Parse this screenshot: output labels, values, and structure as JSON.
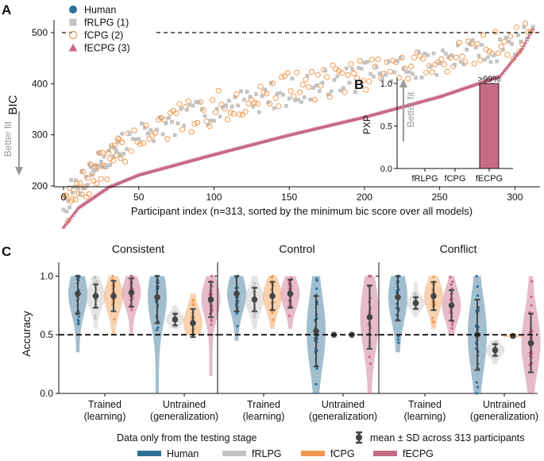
{
  "colors": {
    "human": "#2e6f95",
    "frlpg": "#c3c3c3",
    "fcpg": "#ef9a4f",
    "fecpg": "#c76a85",
    "stat": "#454545",
    "arrow": "#9a9a9a"
  },
  "panel_a": {
    "label": "A",
    "ylabel": "BIC",
    "better_fit": "Better fit",
    "legend": [
      {
        "name": "Human",
        "marker": "circle-filled",
        "color_key": "human"
      },
      {
        "name": "fRLPG (1)",
        "marker": "square",
        "color_key": "frlpg"
      },
      {
        "name": "fCPG (2)",
        "marker": "circle-open",
        "color_key": "fcpg"
      },
      {
        "name": "fECPG (3)",
        "marker": "triangle",
        "color_key": "fecpg"
      }
    ],
    "x_ticks": [
      "0",
      "50",
      "100",
      "150",
      "200",
      "250",
      "300"
    ],
    "y_ticks": [
      "200",
      "300",
      "400",
      "500"
    ]
  },
  "panel_b": {
    "label": "B",
    "ylabel": "PXP",
    "better_fit": "Better fit",
    "y_ticks": [
      "0.0",
      "0.5",
      "1.0"
    ],
    "bar_label": ">99%"
  },
  "panel_c": {
    "label": "C",
    "ylabel": "Accuracy",
    "y_ticks": [
      "0.0",
      "0.5",
      "1.0"
    ],
    "group_labels": [
      {
        "line1": "Trained",
        "line2": "(learning)"
      },
      {
        "line1": "Untrained",
        "line2": "(generalization)"
      }
    ],
    "footnote": "Data only from the testing stage",
    "stat_legend": "mean ± SD across 313 participants",
    "model_legend": [
      {
        "name": "Human",
        "color_key": "human"
      },
      {
        "name": "fRLPG",
        "color_key": "frlpg"
      },
      {
        "name": "fCPG",
        "color_key": "fcpg"
      },
      {
        "name": "fECPG",
        "color_key": "fecpg"
      }
    ]
  },
  "chart_data": [
    {
      "id": "bic",
      "type": "scatter",
      "title": "",
      "xlabel": "Participant index (n=313, sorted by the minimum bic score over all models)",
      "ylabel": "BIC",
      "xlim": [
        -4,
        320
      ],
      "ylim": [
        115,
        515
      ],
      "reference_line": {
        "y": 500,
        "style": "dashed"
      },
      "x_ticks": [
        0,
        50,
        100,
        150,
        200,
        250,
        300
      ],
      "y_ticks": [
        200,
        300,
        400,
        500
      ],
      "n": 313,
      "series": [
        {
          "name": "fRLPG (1)",
          "color_key": "frlpg",
          "marker": "square",
          "curve": [
            [
              0,
              168
            ],
            [
              20,
              238
            ],
            [
              50,
              300
            ],
            [
              100,
              350
            ],
            [
              150,
              385
            ],
            [
              200,
              415
            ],
            [
              250,
              445
            ],
            [
              300,
              478
            ],
            [
              312,
              505
            ]
          ]
        },
        {
          "name": "fCPG (2)",
          "color_key": "fcpg",
          "marker": "circle-open",
          "curve": [
            [
              0,
              150
            ],
            [
              20,
              222
            ],
            [
              50,
              300
            ],
            [
              100,
              352
            ],
            [
              150,
              390
            ],
            [
              200,
              420
            ],
            [
              250,
              448
            ],
            [
              300,
              480
            ],
            [
              312,
              508
            ]
          ]
        },
        {
          "name": "fECPG (3)",
          "color_key": "fecpg",
          "marker": "triangle",
          "curve": [
            [
              0,
              120
            ],
            [
              10,
              158
            ],
            [
              30,
              198
            ],
            [
              50,
              222
            ],
            [
              100,
              262
            ],
            [
              150,
              300
            ],
            [
              200,
              335
            ],
            [
              250,
              375
            ],
            [
              290,
              415
            ],
            [
              305,
              470
            ],
            [
              312,
              508
            ]
          ]
        }
      ]
    },
    {
      "id": "pxp",
      "type": "bar",
      "title": "",
      "ylabel": "PXP",
      "categories": [
        "fRLPG",
        "fCPG",
        "fECPG"
      ],
      "values": [
        0.0,
        0.0,
        1.0
      ],
      "ylim": [
        0,
        1.08
      ],
      "y_ticks": [
        0.0,
        0.5,
        1.0
      ],
      "bar_color_key": "fecpg"
    },
    {
      "id": "accuracy",
      "type": "violin",
      "ylabel": "Accuracy",
      "ylim": [
        0,
        1.05
      ],
      "y_ticks": [
        0.0,
        0.5,
        1.0
      ],
      "chance_line": 0.5,
      "models": [
        "Human",
        "fRLPG",
        "fCPG",
        "fECPG"
      ],
      "groups": [
        "Trained (learning)",
        "Untrained (generalization)"
      ],
      "panels": [
        {
          "title": "Consistent",
          "trained": [
            {
              "mean": 0.85,
              "sd": 0.17,
              "min": 0.35,
              "max": 1.0
            },
            {
              "mean": 0.83,
              "sd": 0.1,
              "min": 0.55,
              "max": 1.0
            },
            {
              "mean": 0.83,
              "sd": 0.13,
              "min": 0.5,
              "max": 1.0
            },
            {
              "mean": 0.86,
              "sd": 0.12,
              "min": 0.5,
              "max": 1.0
            }
          ],
          "untrained": [
            {
              "mean": 0.82,
              "sd": 0.22,
              "min": 0.0,
              "max": 1.0
            },
            {
              "mean": 0.63,
              "sd": 0.05,
              "min": 0.55,
              "max": 0.75
            },
            {
              "mean": 0.6,
              "sd": 0.12,
              "min": 0.5,
              "max": 0.85
            },
            {
              "mean": 0.8,
              "sd": 0.15,
              "min": 0.15,
              "max": 1.0
            }
          ]
        },
        {
          "title": "Control",
          "trained": [
            {
              "mean": 0.85,
              "sd": 0.15,
              "min": 0.45,
              "max": 1.0
            },
            {
              "mean": 0.8,
              "sd": 0.1,
              "min": 0.55,
              "max": 1.0
            },
            {
              "mean": 0.83,
              "sd": 0.12,
              "min": 0.55,
              "max": 1.0
            },
            {
              "mean": 0.85,
              "sd": 0.12,
              "min": 0.55,
              "max": 1.0
            }
          ],
          "untrained": [
            {
              "mean": 0.53,
              "sd": 0.3,
              "min": 0.0,
              "max": 1.0
            },
            {
              "mean": 0.5,
              "sd": 0.0,
              "min": 0.5,
              "max": 0.5
            },
            {
              "mean": 0.5,
              "sd": 0.0,
              "min": 0.5,
              "max": 0.5
            },
            {
              "mean": 0.65,
              "sd": 0.27,
              "min": 0.0,
              "max": 1.0
            }
          ]
        },
        {
          "title": "Conflict",
          "trained": [
            {
              "mean": 0.82,
              "sd": 0.2,
              "min": 0.35,
              "max": 1.0
            },
            {
              "mean": 0.77,
              "sd": 0.05,
              "min": 0.65,
              "max": 0.95
            },
            {
              "mean": 0.83,
              "sd": 0.12,
              "min": 0.55,
              "max": 1.0
            },
            {
              "mean": 0.75,
              "sd": 0.13,
              "min": 0.5,
              "max": 1.0
            }
          ],
          "untrained": [
            {
              "mean": 0.5,
              "sd": 0.3,
              "min": 0.0,
              "max": 1.0
            },
            {
              "mean": 0.37,
              "sd": 0.05,
              "min": 0.25,
              "max": 0.45
            },
            {
              "mean": 0.49,
              "sd": 0.01,
              "min": 0.48,
              "max": 0.5
            },
            {
              "mean": 0.43,
              "sd": 0.25,
              "min": 0.0,
              "max": 1.0
            }
          ]
        }
      ]
    }
  ]
}
